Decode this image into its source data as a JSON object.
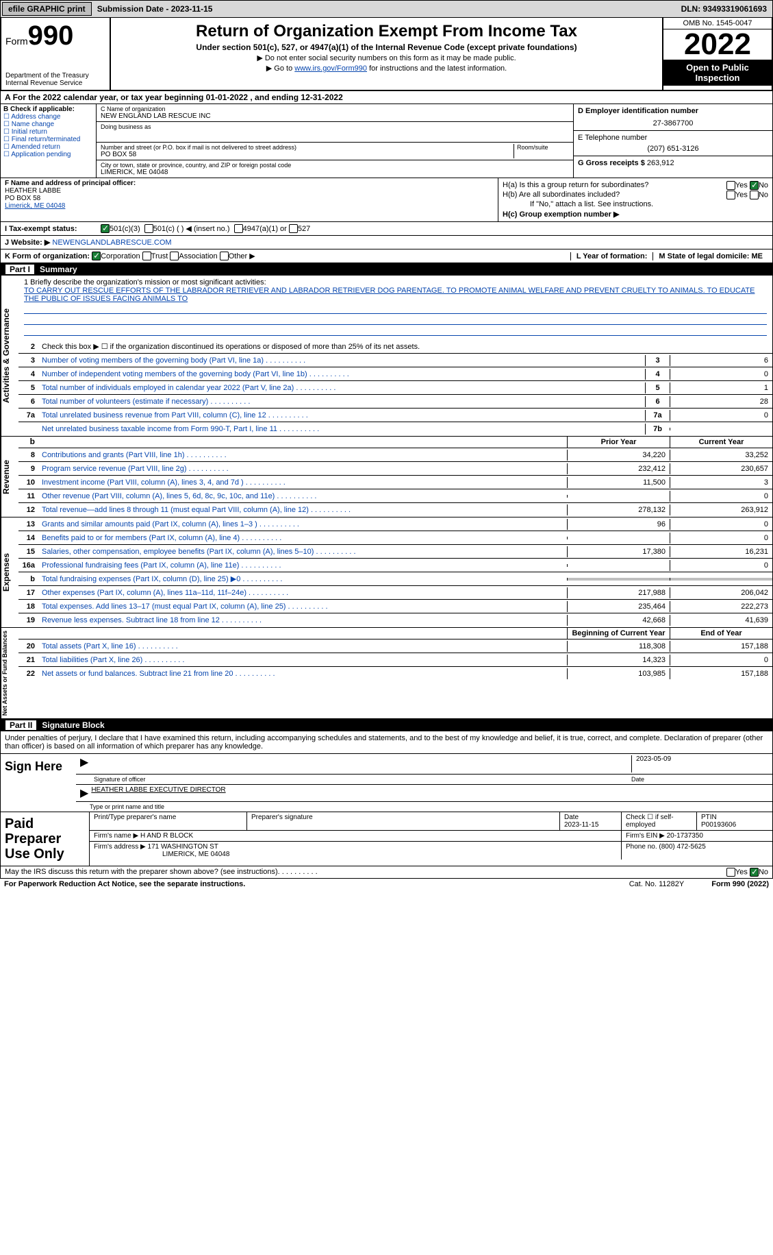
{
  "topbar": {
    "efile": "efile GRAPHIC print",
    "submission": "Submission Date - 2023-11-15",
    "dln": "DLN: 93493319061693"
  },
  "header": {
    "form_label": "Form",
    "form_number": "990",
    "dept": "Department of the Treasury\nInternal Revenue Service",
    "title": "Return of Organization Exempt From Income Tax",
    "subtitle": "Under section 501(c), 527, or 4947(a)(1) of the Internal Revenue Code (except private foundations)",
    "note1": "▶ Do not enter social security numbers on this form as it may be made public.",
    "note2_pre": "▶ Go to ",
    "note2_link": "www.irs.gov/Form990",
    "note2_post": " for instructions and the latest information.",
    "omb": "OMB No. 1545-0047",
    "year": "2022",
    "inspect": "Open to Public Inspection"
  },
  "calyear": "For the 2022 calendar year, or tax year beginning 01-01-2022    , and ending 12-31-2022",
  "check_labels": {
    "b": "B Check if applicable:",
    "addr": "Address change",
    "name": "Name change",
    "init": "Initial return",
    "final": "Final return/terminated",
    "amend": "Amended return",
    "app": "Application pending"
  },
  "orgC": {
    "name_label": "C Name of organization",
    "name": "NEW ENGLAND LAB RESCUE INC",
    "dba_label": "Doing business as",
    "dba": "",
    "street_label": "Number and street (or P.O. box if mail is not delivered to street address)",
    "room_label": "Room/suite",
    "street": "PO BOX 58",
    "city_label": "City or town, state or province, country, and ZIP or foreign postal code",
    "city": "LIMERICK, ME  04048"
  },
  "orgD": {
    "ein_label": "D Employer identification number",
    "ein": "27-3867700",
    "tel_label": "E Telephone number",
    "tel": "(207) 651-3126",
    "gross_label": "G Gross receipts $",
    "gross": "263,912"
  },
  "officerF": {
    "label": "F Name and address of principal officer:",
    "name": "HEATHER LABBE",
    "street": "PO BOX 58",
    "city": "Limerick, ME  04048"
  },
  "sectionH": {
    "ha": "H(a)  Is this a group return for subordinates?",
    "hb": "H(b)  Are all subordinates included?",
    "hnote": "If \"No,\" attach a list. See instructions.",
    "hc": "H(c)  Group exemption number ▶",
    "ha_no_checked": true
  },
  "taxI": {
    "label": "I   Tax-exempt status:",
    "c3": "501(c)(3)",
    "c": "501(c) (   ) ◀ (insert no.)",
    "a1": "4947(a)(1) or",
    "s527": "527",
    "c3_checked": true
  },
  "webJ": {
    "label": "J   Website: ▶",
    "url": "NEWENGLANDLABRESCUE.COM"
  },
  "korg": {
    "label": "K Form of organization:",
    "corp": "Corporation",
    "trust": "Trust",
    "assoc": "Association",
    "other": "Other ▶",
    "corp_checked": true,
    "l": "L Year of formation:",
    "l_val": "",
    "m": "M State of legal domicile: ME"
  },
  "part1": {
    "num": "Part I",
    "title": "Summary"
  },
  "mission": {
    "label": "1   Briefly describe the organization's mission or most significant activities:",
    "text": "TO CARRY OUT RESCUE EFFORTS OF THE LABRADOR RETRIEVER AND LABRADOR RETRIEVER DOG PARENTAGE. TO PROMOTE ANIMAL WELFARE AND PREVENT CRUELTY TO ANIMALS. TO EDUCATE THE PUBLIC OF ISSUES FACING ANIMALS TO"
  },
  "line2": "Check this box ▶ ☐ if the organization discontinued its operations or disposed of more than 25% of its net assets.",
  "vtabs": {
    "gov": "Activities & Governance",
    "rev": "Revenue",
    "exp": "Expenses",
    "net": "Net Assets or Fund Balances"
  },
  "govlines": [
    {
      "n": "3",
      "t": "Number of voting members of the governing body (Part VI, line 1a)",
      "b": "3",
      "v": "6"
    },
    {
      "n": "4",
      "t": "Number of independent voting members of the governing body (Part VI, line 1b)",
      "b": "4",
      "v": "0"
    },
    {
      "n": "5",
      "t": "Total number of individuals employed in calendar year 2022 (Part V, line 2a)",
      "b": "5",
      "v": "1"
    },
    {
      "n": "6",
      "t": "Total number of volunteers (estimate if necessary)",
      "b": "6",
      "v": "28"
    },
    {
      "n": "7a",
      "t": "Total unrelated business revenue from Part VIII, column (C), line 12",
      "b": "7a",
      "v": "0"
    },
    {
      "n": "",
      "t": "Net unrelated business taxable income from Form 990-T, Part I, line 11",
      "b": "7b",
      "v": ""
    }
  ],
  "colhdrs": {
    "b": "b",
    "prior": "Prior Year",
    "current": "Current Year"
  },
  "revlines": [
    {
      "n": "8",
      "t": "Contributions and grants (Part VIII, line 1h)",
      "p": "34,220",
      "c": "33,252"
    },
    {
      "n": "9",
      "t": "Program service revenue (Part VIII, line 2g)",
      "p": "232,412",
      "c": "230,657"
    },
    {
      "n": "10",
      "t": "Investment income (Part VIII, column (A), lines 3, 4, and 7d )",
      "p": "11,500",
      "c": "3"
    },
    {
      "n": "11",
      "t": "Other revenue (Part VIII, column (A), lines 5, 6d, 8c, 9c, 10c, and 11e)",
      "p": "",
      "c": "0"
    },
    {
      "n": "12",
      "t": "Total revenue—add lines 8 through 11 (must equal Part VIII, column (A), line 12)",
      "p": "278,132",
      "c": "263,912"
    }
  ],
  "explines": [
    {
      "n": "13",
      "t": "Grants and similar amounts paid (Part IX, column (A), lines 1–3 )",
      "p": "96",
      "c": "0"
    },
    {
      "n": "14",
      "t": "Benefits paid to or for members (Part IX, column (A), line 4)",
      "p": "",
      "c": "0"
    },
    {
      "n": "15",
      "t": "Salaries, other compensation, employee benefits (Part IX, column (A), lines 5–10)",
      "p": "17,380",
      "c": "16,231"
    },
    {
      "n": "16a",
      "t": "Professional fundraising fees (Part IX, column (A), line 11e)",
      "p": "",
      "c": "0"
    },
    {
      "n": "b",
      "t": "Total fundraising expenses (Part IX, column (D), line 25) ▶0",
      "p": "SHADE",
      "c": "SHADE"
    },
    {
      "n": "17",
      "t": "Other expenses (Part IX, column (A), lines 11a–11d, 11f–24e)",
      "p": "217,988",
      "c": "206,042"
    },
    {
      "n": "18",
      "t": "Total expenses. Add lines 13–17 (must equal Part IX, column (A), line 25)",
      "p": "235,464",
      "c": "222,273"
    },
    {
      "n": "19",
      "t": "Revenue less expenses. Subtract line 18 from line 12",
      "p": "42,668",
      "c": "41,639"
    }
  ],
  "nethdrs": {
    "beg": "Beginning of Current Year",
    "end": "End of Year"
  },
  "netlines": [
    {
      "n": "20",
      "t": "Total assets (Part X, line 16)",
      "p": "118,308",
      "c": "157,188"
    },
    {
      "n": "21",
      "t": "Total liabilities (Part X, line 26)",
      "p": "14,323",
      "c": "0"
    },
    {
      "n": "22",
      "t": "Net assets or fund balances. Subtract line 21 from line 20",
      "p": "103,985",
      "c": "157,188"
    }
  ],
  "part2": {
    "num": "Part II",
    "title": "Signature Block"
  },
  "sigdecl": "Under penalties of perjury, I declare that I have examined this return, including accompanying schedules and statements, and to the best of my knowledge and belief, it is true, correct, and complete. Declaration of preparer (other than officer) is based on all information of which preparer has any knowledge.",
  "sign": {
    "label": "Sign Here",
    "sig_label": "Signature of officer",
    "date": "2023-05-09",
    "date_label": "Date",
    "name": "HEATHER LABBE  EXECUTIVE DIRECTOR",
    "name_label": "Type or print name and title"
  },
  "prep": {
    "label": "Paid Preparer Use Only",
    "r1": {
      "c1": "Print/Type preparer's name",
      "c2": "Preparer's signature",
      "c3l": "Date",
      "c3": "2023-11-15",
      "c4": "Check ☐ if self-employed",
      "c5l": "PTIN",
      "c5": "P00193606"
    },
    "r2": {
      "c1": "Firm's name    ▶",
      "c1v": "H AND R BLOCK",
      "c2": "Firm's EIN ▶",
      "c2v": "20-1737350"
    },
    "r3": {
      "c1": "Firm's address ▶",
      "c1v": "171 WASHINGTON ST",
      "c1v2": "LIMERICK, ME  04048",
      "c2": "Phone no.",
      "c2v": "(800) 472-5625"
    }
  },
  "irs_discuss": "May the IRS discuss this return with the preparer shown above? (see instructions)",
  "irs_no_checked": true,
  "footer": {
    "pra": "For Paperwork Reduction Act Notice, see the separate instructions.",
    "cat": "Cat. No. 11282Y",
    "form": "Form 990 (2022)"
  }
}
